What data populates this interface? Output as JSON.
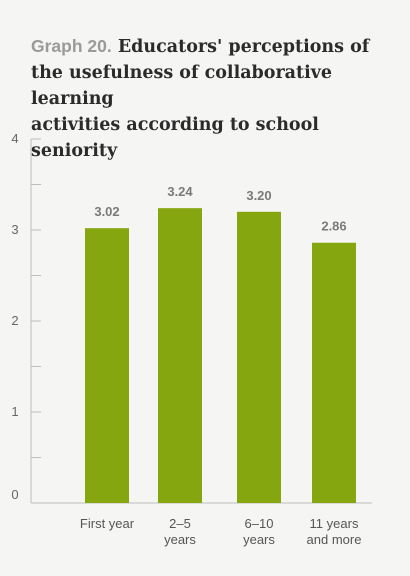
{
  "title": {
    "prefix": "Graph 20.",
    "line1": "Educators' perceptions of",
    "line2": "the usefulness of collaborative learning",
    "line3": "activities according to school seniority"
  },
  "colors": {
    "bar": "#86a60f",
    "axis": "#bdbdbd"
  },
  "chart_data": {
    "type": "bar",
    "categories": [
      "First year",
      "2–5 years",
      "6–10 years",
      "11 years and more"
    ],
    "category_lines": [
      [
        "First year"
      ],
      [
        "2–5",
        "years"
      ],
      [
        "6–10",
        "years"
      ],
      [
        "11 years",
        "and more"
      ]
    ],
    "values": [
      3.02,
      3.24,
      3.2,
      2.86
    ],
    "value_labels": [
      "3.02",
      "3.24",
      "3.20",
      "2.86"
    ],
    "ylim": [
      0,
      4
    ],
    "yticks": [
      "0",
      "1",
      "2",
      "3",
      "4"
    ],
    "minor_ticks": true,
    "grid": false,
    "xlabel": "",
    "ylabel": ""
  }
}
